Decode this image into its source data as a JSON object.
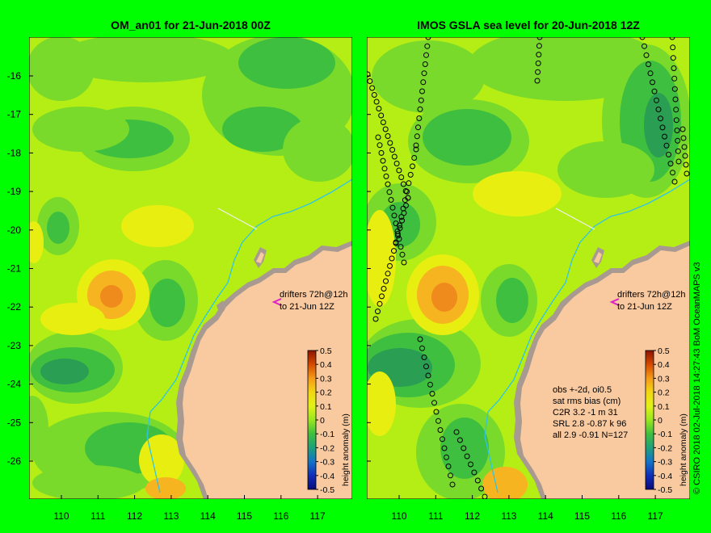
{
  "left_panel": {
    "title": "OM_an01 for 21-Jun-2018 00Z",
    "annotation_line1": "drifters 72h@12h",
    "annotation_line2": "to 21-Jun 12Z"
  },
  "right_panel": {
    "title": "IMOS GSLA sea level  for 20-Jun-2018 12Z",
    "annotation_line1": "drifters 72h@12h",
    "annotation_line2": "to 21-Jun 12Z",
    "stats": [
      "obs +-2d, oi0.5",
      "sat rms bias (cm)",
      "C2R   3.2  -1 m 31",
      "SRL    2.8 -0.87 k 96",
      "all    2.9 -0.91 N=127"
    ]
  },
  "axes": {
    "lat_ticks": [
      "-16",
      "-17",
      "-18",
      "-19",
      "-20",
      "-21",
      "-22",
      "-23",
      "-24",
      "-25",
      "-26"
    ],
    "lon_ticks": [
      "110",
      "111",
      "112",
      "113",
      "114",
      "115",
      "116",
      "117"
    ]
  },
  "colorbar": {
    "label": "height anomaly (m)",
    "ticks": [
      "0.5",
      "0.4",
      "0.3",
      "0.2",
      "0.1",
      "0",
      "-0.1",
      "-0.2",
      "-0.3",
      "-0.4",
      "-0.5"
    ]
  },
  "credit": "© CSIRO 2018   02-Jul-2018 14:27:43 BoM OceanMAPS v3",
  "colors": {
    "frame_bg": "#00ff00",
    "land": "#f9c9a0",
    "base_field": "#b4ee14",
    "light_green": "#79da2b",
    "mid_green": "#3fbf3f",
    "dark_green": "#2a9e52",
    "yellow": "#e8ef10",
    "orange": "#f6b420",
    "deep_orange": "#ef8a1c",
    "coastline": "#a89a90",
    "current_line": "#2fc4e8",
    "drifter": "#e020c8"
  }
}
